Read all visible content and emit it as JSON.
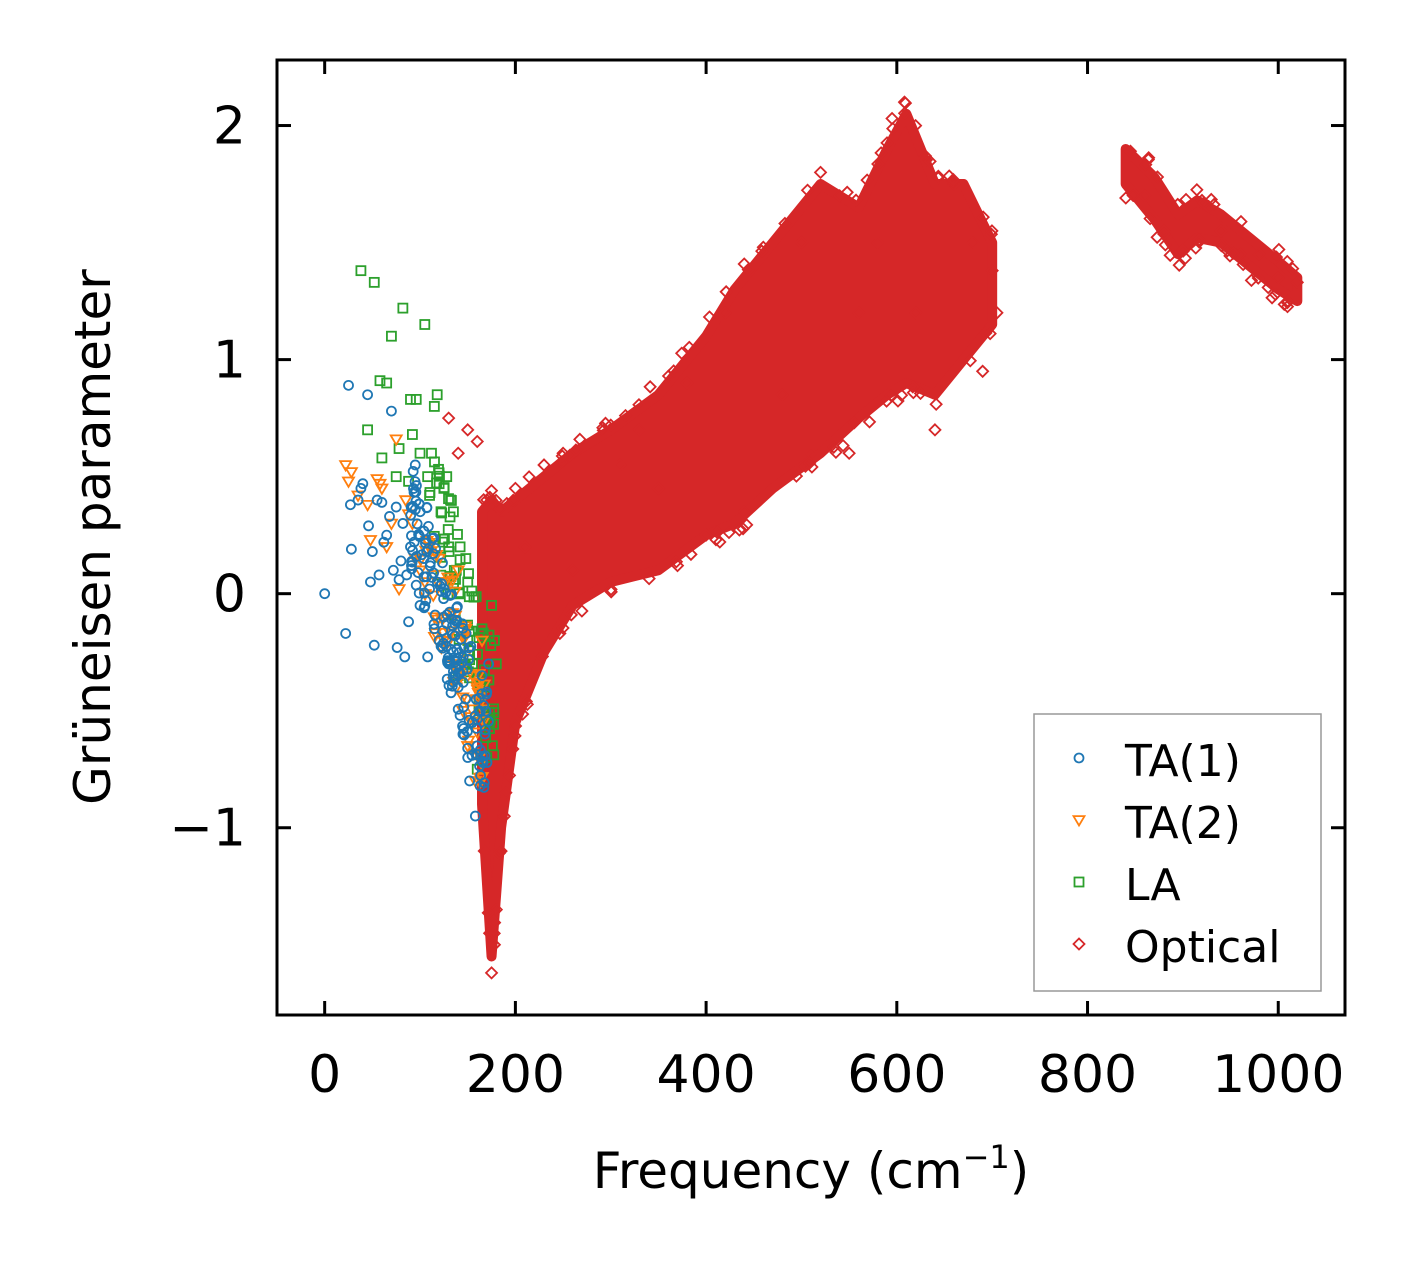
{
  "chart_data": {
    "type": "scatter",
    "title": "",
    "xlabel": "Frequency (cm",
    "xlabel_sup": "−1",
    "xlabel_end": ")",
    "ylabel": "Grüneisen parameter",
    "xlim": [
      -50,
      1070
    ],
    "ylim": [
      -1.8,
      2.28
    ],
    "xticks": [
      0,
      200,
      400,
      600,
      800,
      1000
    ],
    "xtick_labels": [
      "0",
      "200",
      "400",
      "600",
      "800",
      "1000"
    ],
    "yticks": [
      -1,
      0,
      1,
      2
    ],
    "ytick_labels": [
      "−1",
      "0",
      "1",
      "2"
    ],
    "grid": false,
    "legend_position": "bottom-right",
    "series": [
      {
        "name": "TA(1)",
        "marker": "circle",
        "color": "#1f77b4",
        "points": [
          [
            0,
            0
          ],
          [
            22,
            -0.17
          ],
          [
            25,
            0.89
          ],
          [
            27,
            0.38
          ],
          [
            28,
            0.19
          ],
          [
            35,
            0.4
          ],
          [
            38,
            0.45
          ],
          [
            40,
            0.47
          ],
          [
            45,
            0.85
          ],
          [
            46,
            0.29
          ],
          [
            48,
            0.05
          ],
          [
            50,
            0.18
          ],
          [
            52,
            -0.22
          ],
          [
            55,
            0.4
          ],
          [
            57,
            0.08
          ],
          [
            60,
            0.39
          ],
          [
            62,
            0.22
          ],
          [
            65,
            0.25
          ],
          [
            68,
            0.33
          ],
          [
            70,
            0.78
          ],
          [
            72,
            0.1
          ],
          [
            75,
            0.37
          ],
          [
            76,
            -0.23
          ],
          [
            78,
            0.06
          ],
          [
            80,
            0.14
          ],
          [
            82,
            0.3
          ],
          [
            84,
            -0.27
          ],
          [
            86,
            0.08
          ],
          [
            88,
            -0.12
          ],
          [
            90,
            0.2
          ],
          [
            95,
            0.55
          ],
          [
            98,
            0.09
          ],
          [
            100,
            -0.05
          ],
          [
            104,
            0.15
          ],
          [
            108,
            -0.27
          ],
          [
            110,
            0.02
          ],
          [
            115,
            -0.15
          ],
          [
            118,
            0.05
          ],
          [
            120,
            -0.2
          ],
          [
            125,
            -0.1
          ],
          [
            130,
            -0.3
          ],
          [
            135,
            -0.25
          ],
          [
            140,
            -0.4
          ],
          [
            142,
            -0.52
          ],
          [
            145,
            -0.6
          ],
          [
            148,
            -0.45
          ],
          [
            150,
            -0.7
          ],
          [
            152,
            -0.8
          ],
          [
            155,
            -0.55
          ],
          [
            158,
            -0.95
          ],
          [
            160,
            -0.65
          ],
          [
            162,
            -0.5
          ],
          [
            165,
            -0.35
          ],
          [
            168,
            -0.6
          ],
          [
            170,
            -0.42
          ],
          [
            172,
            -0.3
          ]
        ],
        "cluster": {
          "x_range": [
            90,
            172
          ],
          "y_range": [
            -0.95,
            0.35
          ],
          "count": 150
        }
      },
      {
        "name": "TA(2)",
        "marker": "triangle-down",
        "color": "#ff7f0e",
        "points": [
          [
            22,
            0.55
          ],
          [
            25,
            0.48
          ],
          [
            28,
            0.52
          ],
          [
            35,
            0.42
          ],
          [
            45,
            0.38
          ],
          [
            48,
            0.23
          ],
          [
            55,
            0.49
          ],
          [
            58,
            0.47
          ],
          [
            60,
            0.45
          ],
          [
            65,
            0.2
          ],
          [
            70,
            0.3
          ],
          [
            75,
            0.66
          ],
          [
            78,
            0.02
          ],
          [
            85,
            0.4
          ],
          [
            88,
            0.34
          ],
          [
            92,
            0.3
          ],
          [
            95,
            0.15
          ],
          [
            100,
            0.1
          ],
          [
            105,
            0.05
          ],
          [
            110,
            0.2
          ],
          [
            115,
            -0.1
          ],
          [
            120,
            0.15
          ],
          [
            125,
            -0.2
          ],
          [
            130,
            0.05
          ],
          [
            135,
            -0.3
          ],
          [
            138,
            -0.4
          ],
          [
            140,
            0.1
          ],
          [
            145,
            -0.5
          ],
          [
            148,
            -0.15
          ],
          [
            150,
            -0.65
          ],
          [
            155,
            -0.35
          ],
          [
            158,
            -0.8
          ],
          [
            160,
            -0.4
          ],
          [
            165,
            -0.2
          ]
        ],
        "cluster": {
          "x_range": [
            100,
            168
          ],
          "y_range": [
            -0.85,
            0.25
          ],
          "count": 60
        }
      },
      {
        "name": "LA",
        "marker": "square",
        "color": "#2ca02c",
        "points": [
          [
            38,
            1.38
          ],
          [
            45,
            0.7
          ],
          [
            52,
            1.33
          ],
          [
            58,
            0.91
          ],
          [
            60,
            0.58
          ],
          [
            65,
            0.9
          ],
          [
            70,
            1.1
          ],
          [
            75,
            0.5
          ],
          [
            78,
            0.62
          ],
          [
            82,
            1.22
          ],
          [
            88,
            0.48
          ],
          [
            90,
            0.83
          ],
          [
            92,
            0.68
          ],
          [
            96,
            0.83
          ],
          [
            100,
            0.6
          ],
          [
            105,
            1.15
          ],
          [
            108,
            0.5
          ],
          [
            110,
            0.42
          ],
          [
            112,
            0.6
          ],
          [
            115,
            0.8
          ],
          [
            118,
            0.85
          ],
          [
            120,
            0.47
          ],
          [
            122,
            0.35
          ],
          [
            125,
            0.45
          ],
          [
            128,
            0.5
          ],
          [
            130,
            0.2
          ],
          [
            132,
            0.4
          ],
          [
            135,
            0.35
          ],
          [
            138,
            0.1
          ],
          [
            140,
            -0.35
          ],
          [
            142,
            0.2
          ],
          [
            148,
            0.15
          ],
          [
            150,
            -0.2
          ],
          [
            155,
            -0.3
          ],
          [
            160,
            -0.75
          ],
          [
            162,
            -0.5
          ],
          [
            165,
            -0.15
          ],
          [
            168,
            -0.4
          ],
          [
            170,
            -0.7
          ],
          [
            172,
            -0.55
          ],
          [
            175,
            -0.05
          ],
          [
            178,
            -0.2
          ],
          [
            180,
            -0.3
          ]
        ],
        "cluster": {
          "x_range": [
            110,
            180
          ],
          "y_range": [
            -0.8,
            0.5
          ],
          "count": 70
        }
      },
      {
        "name": "Optical",
        "marker": "diamond",
        "color": "#d62728",
        "points": [
          [
            130,
            0.75
          ],
          [
            140,
            0.6
          ],
          [
            150,
            0.7
          ],
          [
            160,
            0.65
          ],
          [
            170,
            0.4
          ],
          [
            175,
            -1.62
          ],
          [
            178,
            -1.5
          ],
          [
            180,
            -1.35
          ],
          [
            185,
            -1.1
          ],
          [
            190,
            -0.85
          ],
          [
            200,
            0.45
          ],
          [
            210,
            0.2
          ],
          [
            230,
            0.55
          ],
          [
            250,
            0.6
          ],
          [
            260,
            0.1
          ],
          [
            300,
            0.72
          ],
          [
            310,
            0.55
          ],
          [
            330,
            0.7
          ],
          [
            350,
            0.45
          ],
          [
            370,
            0.12
          ],
          [
            380,
            0.9
          ],
          [
            400,
            0.25
          ],
          [
            420,
            1.2
          ],
          [
            440,
            0.35
          ],
          [
            460,
            1.48
          ],
          [
            480,
            0.85
          ],
          [
            500,
            1.5
          ],
          [
            510,
            0.6
          ],
          [
            520,
            1.8
          ],
          [
            540,
            1.7
          ],
          [
            550,
            0.6
          ],
          [
            560,
            1.2
          ],
          [
            580,
            1.5
          ],
          [
            595,
            2.03
          ],
          [
            608,
            2.1
          ],
          [
            620,
            1.2
          ],
          [
            630,
            1.87
          ],
          [
            640,
            0.7
          ],
          [
            660,
            1.75
          ],
          [
            680,
            1.5
          ],
          [
            690,
            0.95
          ],
          [
            700,
            1.38
          ],
          [
            705,
            1.2
          ],
          [
            845,
            1.89
          ],
          [
            860,
            1.7
          ],
          [
            880,
            1.55
          ],
          [
            900,
            1.47
          ],
          [
            920,
            1.68
          ],
          [
            940,
            1.55
          ],
          [
            960,
            1.45
          ],
          [
            980,
            1.45
          ],
          [
            1000,
            1.35
          ],
          [
            1010,
            1.25
          ],
          [
            1020,
            1.33
          ]
        ],
        "band": [
          {
            "x": 165,
            "ymin": -0.9,
            "ymax": 0.35
          },
          {
            "x": 175,
            "ymin": -1.55,
            "ymax": 0.4
          },
          {
            "x": 185,
            "ymin": -1.0,
            "ymax": 0.35
          },
          {
            "x": 200,
            "ymin": -0.55,
            "ymax": 0.4
          },
          {
            "x": 230,
            "ymin": -0.25,
            "ymax": 0.5
          },
          {
            "x": 260,
            "ymin": -0.05,
            "ymax": 0.6
          },
          {
            "x": 300,
            "ymin": 0.05,
            "ymax": 0.7
          },
          {
            "x": 350,
            "ymin": 0.1,
            "ymax": 0.85
          },
          {
            "x": 400,
            "ymin": 0.25,
            "ymax": 1.1
          },
          {
            "x": 430,
            "ymin": 0.3,
            "ymax": 1.3
          },
          {
            "x": 470,
            "ymin": 0.45,
            "ymax": 1.5
          },
          {
            "x": 520,
            "ymin": 0.6,
            "ymax": 1.75
          },
          {
            "x": 560,
            "ymin": 0.75,
            "ymax": 1.65
          },
          {
            "x": 590,
            "ymin": 0.85,
            "ymax": 1.9
          },
          {
            "x": 610,
            "ymin": 0.9,
            "ymax": 2.05
          },
          {
            "x": 640,
            "ymin": 0.85,
            "ymax": 1.75
          },
          {
            "x": 670,
            "ymin": 1.0,
            "ymax": 1.75
          },
          {
            "x": 700,
            "ymin": 1.15,
            "ymax": 1.5
          }
        ],
        "band2": [
          {
            "x": 840,
            "ymin": 1.75,
            "ymax": 1.9
          },
          {
            "x": 870,
            "ymin": 1.6,
            "ymax": 1.78
          },
          {
            "x": 895,
            "ymin": 1.45,
            "ymax": 1.62
          },
          {
            "x": 915,
            "ymin": 1.52,
            "ymax": 1.68
          },
          {
            "x": 940,
            "ymin": 1.5,
            "ymax": 1.62
          },
          {
            "x": 970,
            "ymin": 1.4,
            "ymax": 1.52
          },
          {
            "x": 1000,
            "ymin": 1.3,
            "ymax": 1.42
          },
          {
            "x": 1020,
            "ymin": 1.25,
            "ymax": 1.35
          }
        ]
      }
    ]
  }
}
